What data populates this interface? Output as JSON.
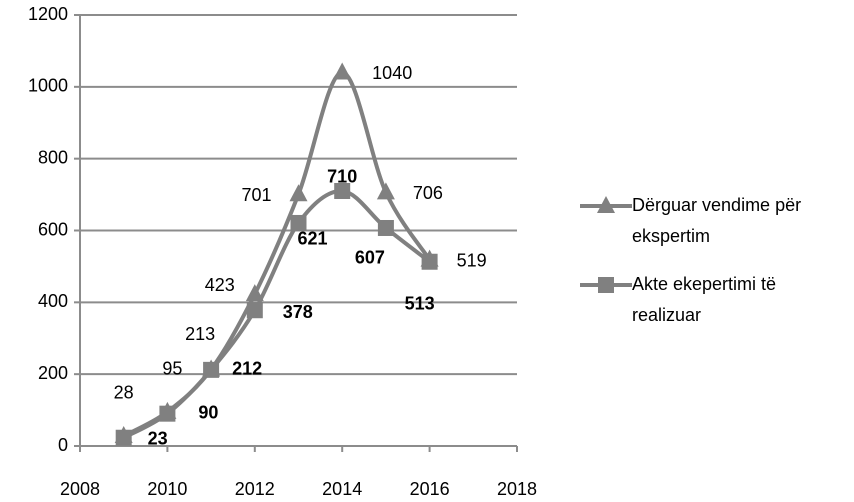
{
  "chart_data": {
    "type": "line",
    "x": [
      2009,
      2010,
      2011,
      2012,
      2013,
      2014,
      2015,
      2016
    ],
    "series": [
      {
        "name": "Dërguar vendime për ekspertim",
        "color": "#808080",
        "marker": "triangle",
        "values": [
          28,
          95,
          213,
          423,
          701,
          1040,
          706,
          519
        ]
      },
      {
        "name": "Akte ekepertimi të realizuar",
        "color": "#808080",
        "marker": "square",
        "values": [
          23,
          90,
          212,
          378,
          621,
          710,
          607,
          513
        ]
      }
    ],
    "xlim": [
      2008,
      2018
    ],
    "xticks": [
      2008,
      2010,
      2012,
      2014,
      2016,
      2018
    ],
    "ylim": [
      0,
      1200
    ],
    "yticks": [
      0,
      200,
      400,
      600,
      800,
      1000,
      1200
    ],
    "grid": true,
    "smooth": true,
    "legend": "right"
  }
}
